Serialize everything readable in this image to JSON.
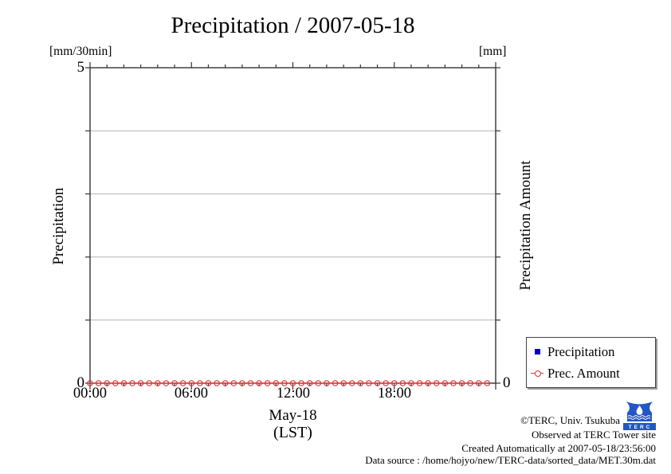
{
  "title": "Precipitation / 2007-05-18",
  "axes": {
    "left": {
      "unit": "[mm/30min]",
      "label": "Precipitation",
      "max": "5",
      "min": "0"
    },
    "right": {
      "unit": "[mm]",
      "label": "Precipitation Amount",
      "min": "0"
    },
    "x": {
      "ticks": [
        "00:00",
        "06:00",
        "12:00",
        "18:00"
      ],
      "date_label": "May-18",
      "tz_label": "(LST)"
    }
  },
  "legend": {
    "items": [
      {
        "label": "Precipitation",
        "marker": "square",
        "color": "#0000cc"
      },
      {
        "label": "Prec. Amount",
        "marker": "circle-open",
        "color": "#e03535"
      }
    ]
  },
  "footer": {
    "copyright": "©TERC, Univ. Tsukuba",
    "observed": "Observed at TERC Tower site",
    "created": "Created Automatically at 2007-05-18/23:56:00",
    "datasource": "Data source : /home/hojyo/new/TERC-data/sorted_data/MET.30m.dat",
    "logo_text": "TERC"
  },
  "chart_data": {
    "type": "line",
    "title": "Precipitation / 2007-05-18",
    "x": [
      "00:00",
      "00:30",
      "01:00",
      "01:30",
      "02:00",
      "02:30",
      "03:00",
      "03:30",
      "04:00",
      "04:30",
      "05:00",
      "05:30",
      "06:00",
      "06:30",
      "07:00",
      "07:30",
      "08:00",
      "08:30",
      "09:00",
      "09:30",
      "10:00",
      "10:30",
      "11:00",
      "11:30",
      "12:00",
      "12:30",
      "13:00",
      "13:30",
      "14:00",
      "14:30",
      "15:00",
      "15:30",
      "16:00",
      "16:30",
      "17:00",
      "17:30",
      "18:00",
      "18:30",
      "19:00",
      "19:30",
      "20:00",
      "20:30",
      "21:00",
      "21:30",
      "22:00",
      "22:30",
      "23:00",
      "23:30"
    ],
    "series": [
      {
        "name": "Precipitation",
        "axis": "left",
        "color": "#0000cc",
        "marker": "square",
        "style": "impulse",
        "values": [
          0,
          0,
          0,
          0,
          0,
          0,
          0,
          0,
          0,
          0,
          0,
          0,
          0,
          0,
          0,
          0,
          0,
          0,
          0,
          0,
          0,
          0,
          0,
          0,
          0,
          0,
          0,
          0,
          0,
          0,
          0,
          0,
          0,
          0,
          0,
          0,
          0,
          0,
          0,
          0,
          0,
          0,
          0,
          0,
          0,
          0,
          0,
          0
        ]
      },
      {
        "name": "Prec. Amount",
        "axis": "right",
        "color": "#e03535",
        "marker": "circle-open",
        "style": "linespoints",
        "values": [
          0,
          0,
          0,
          0,
          0,
          0,
          0,
          0,
          0,
          0,
          0,
          0,
          0,
          0,
          0,
          0,
          0,
          0,
          0,
          0,
          0,
          0,
          0,
          0,
          0,
          0,
          0,
          0,
          0,
          0,
          0,
          0,
          0,
          0,
          0,
          0,
          0,
          0,
          0,
          0,
          0,
          0,
          0,
          0,
          0,
          0,
          0,
          0
        ]
      }
    ],
    "xlabel": "May-18 (LST)",
    "ylabel_left": "Precipitation [mm/30min]",
    "ylabel_right": "Precipitation Amount [mm]",
    "ylim_left": [
      0,
      5
    ],
    "gridlines_left_values": [
      1,
      2,
      3,
      4
    ],
    "x_major_ticks_hours": 6,
    "x_minor_ticks_hours": 1,
    "grid": "horizontal",
    "legend_position": "outside-right-bottom"
  }
}
